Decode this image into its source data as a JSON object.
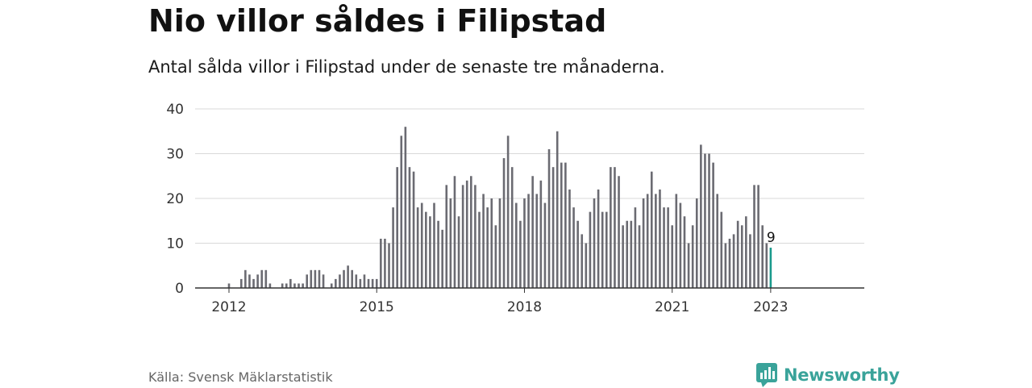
{
  "header": {
    "title": "Nio villor såldes i Filipstad",
    "subtitle": "Antal sålda villor i Filipstad under de senaste tre månaderna."
  },
  "footer": {
    "source": "Källa: Svensk Mäklarstatistik",
    "brand": "Newsworthy",
    "brand_icon": "newsworthy-logo-icon"
  },
  "colors": {
    "bar": "#6b6b72",
    "highlight": "#1a9a8c",
    "grid": "#d9d9d9",
    "axis": "#333333",
    "brand": "#3aa39a"
  },
  "chart_data": {
    "type": "bar",
    "title": "Nio villor såldes i Filipstad",
    "subtitle": "Antal sålda villor i Filipstad under de senaste tre månaderna.",
    "xlabel": "",
    "ylabel": "",
    "ylim": [
      0,
      40
    ],
    "yticks": [
      "0",
      "10",
      "20",
      "30",
      "40"
    ],
    "xticks": [
      "2012",
      "2015",
      "2018",
      "2021",
      "2023"
    ],
    "grid": true,
    "start": "2012-01",
    "end": "2023-01",
    "highlight_last": true,
    "annotation": "9",
    "series": [
      {
        "name": "",
        "values": [
          1,
          0,
          0,
          2,
          4,
          3,
          2,
          3,
          4,
          4,
          1,
          0,
          0,
          1,
          1,
          2,
          1,
          1,
          1,
          3,
          4,
          4,
          4,
          3,
          0,
          1,
          2,
          3,
          4,
          5,
          4,
          3,
          2,
          3,
          2,
          2,
          2,
          11,
          11,
          10,
          18,
          27,
          34,
          36,
          27,
          26,
          18,
          19,
          17,
          16,
          19,
          15,
          13,
          23,
          20,
          25,
          16,
          23,
          24,
          25,
          23,
          17,
          21,
          18,
          20,
          14,
          20,
          29,
          34,
          27,
          19,
          15,
          20,
          21,
          25,
          21,
          24,
          19,
          31,
          27,
          35,
          28,
          28,
          22,
          18,
          15,
          12,
          10,
          17,
          20,
          22,
          17,
          17,
          27,
          27,
          25,
          14,
          15,
          15,
          18,
          14,
          20,
          21,
          26,
          21,
          22,
          18,
          18,
          14,
          21,
          19,
          16,
          10,
          14,
          20,
          32,
          30,
          30,
          28,
          21,
          17,
          10,
          11,
          12,
          15,
          14,
          16,
          12,
          23,
          23,
          14,
          10,
          9
        ]
      }
    ]
  }
}
